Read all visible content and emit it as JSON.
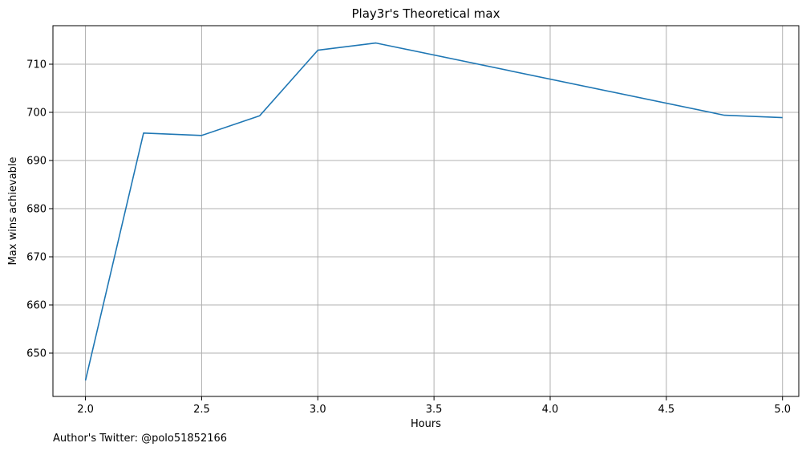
{
  "chart_data": {
    "type": "line",
    "title": "Play3r's Theoretical max",
    "xlabel": "Hours",
    "ylabel": "Max wins achievable",
    "xlim": [
      1.86,
      5.07
    ],
    "ylim": [
      641,
      718
    ],
    "x_ticks": [
      2.0,
      2.5,
      3.0,
      3.5,
      4.0,
      4.5,
      5.0
    ],
    "x_tick_labels": [
      "2.0",
      "2.5",
      "3.0",
      "3.5",
      "4.0",
      "4.5",
      "5.0"
    ],
    "y_ticks": [
      650,
      660,
      670,
      680,
      690,
      700,
      710
    ],
    "y_tick_labels": [
      "650",
      "660",
      "670",
      "680",
      "690",
      "700",
      "710"
    ],
    "grid": true,
    "series": [
      {
        "color": "#1f77b4",
        "x": [
          2.0,
          2.25,
          2.5,
          2.75,
          3.0,
          3.25,
          4.75,
          5.0
        ],
        "y": [
          644.3,
          695.7,
          695.2,
          699.3,
          712.9,
          714.4,
          699.4,
          698.9
        ]
      }
    ]
  },
  "footnote": "Author's Twitter: @polo51852166"
}
